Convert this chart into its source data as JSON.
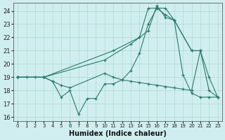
{
  "xlabel": "Humidex (Indice chaleur)",
  "bg_color": "#d0eef0",
  "line_color": "#2a7a6a",
  "marker": "+",
  "xlim": [
    -0.5,
    23.5
  ],
  "ylim": [
    15.7,
    24.6
  ],
  "xticks": [
    0,
    1,
    2,
    3,
    4,
    5,
    6,
    7,
    8,
    9,
    10,
    11,
    12,
    13,
    14,
    15,
    16,
    17,
    18,
    19,
    20,
    21,
    22,
    23
  ],
  "yticks": [
    16,
    17,
    18,
    19,
    20,
    21,
    22,
    23,
    24
  ],
  "grid_color": "#b0d8d0",
  "lines": [
    {
      "x": [
        0,
        1,
        2,
        3,
        4,
        5,
        6,
        7,
        8,
        9,
        10,
        11,
        12,
        13,
        14,
        15,
        16,
        17,
        18,
        19,
        20,
        21,
        22,
        23
      ],
      "y": [
        19,
        19,
        19,
        19,
        18.7,
        17.5,
        18,
        16.2,
        17.4,
        17.4,
        18.5,
        18.5,
        18.8,
        19.5,
        20.8,
        23.0,
        24.2,
        23.7,
        23.3,
        19.2,
        17.8,
        17.5,
        17.5,
        17.5
      ]
    },
    {
      "x": [
        0,
        3,
        10,
        13,
        14,
        15,
        16,
        17,
        18,
        20,
        21,
        22,
        23
      ],
      "y": [
        19,
        19,
        20.3,
        21.5,
        22,
        24.2,
        24.2,
        24.2,
        23.3,
        21,
        21,
        18,
        17.5
      ]
    },
    {
      "x": [
        0,
        3,
        11,
        14,
        15,
        16,
        17,
        18,
        20,
        21
      ],
      "y": [
        19,
        19,
        21,
        22,
        22.5,
        24.4,
        23.5,
        23.3,
        21,
        21
      ]
    },
    {
      "x": [
        0,
        3,
        4,
        5,
        6,
        10,
        11,
        12,
        13,
        14,
        15,
        16,
        17,
        18,
        19,
        20,
        21,
        22,
        23
      ],
      "y": [
        19,
        19,
        18.7,
        18.4,
        18.2,
        19.3,
        19.0,
        18.8,
        18.7,
        18.6,
        18.5,
        18.4,
        18.3,
        18.2,
        18.1,
        18.0,
        21,
        19,
        17.5
      ]
    }
  ]
}
